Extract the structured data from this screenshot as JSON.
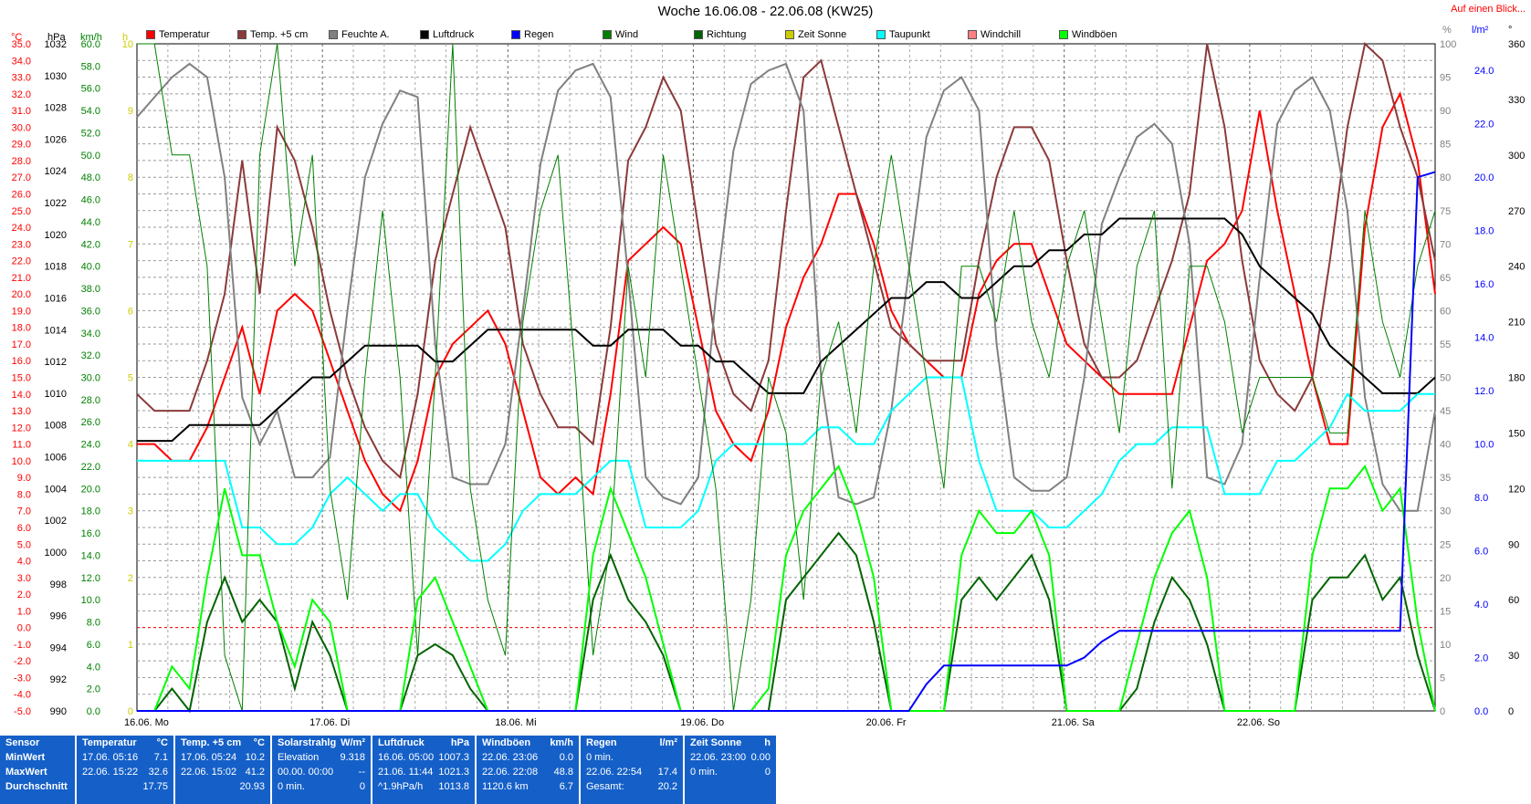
{
  "title": "Woche 16.06.08 - 22.06.08 (KW25)",
  "overview_link": "Auf einen Blick...",
  "legend": [
    {
      "label": "Temperatur",
      "color": "#ff0000"
    },
    {
      "label": "Temp. +5 cm",
      "color": "#8b3a3a"
    },
    {
      "label": "Feuchte A.",
      "color": "#808080"
    },
    {
      "label": "Luftdruck",
      "color": "#000000"
    },
    {
      "label": "Regen",
      "color": "#0000ff"
    },
    {
      "label": "Wind",
      "color": "#008000"
    },
    {
      "label": "Richtung",
      "color": "#006400"
    },
    {
      "label": "Zeit Sonne",
      "color": "#cccc00"
    },
    {
      "label": "Taupunkt",
      "color": "#00ffff"
    },
    {
      "label": "Windchill",
      "color": "#ff8080"
    },
    {
      "label": "Windböen",
      "color": "#00ff00"
    }
  ],
  "chart_data": {
    "type": "line",
    "axes": {
      "temperature": {
        "unit": "°C",
        "range": [
          -5,
          35
        ],
        "step": 1,
        "color": "#ff0000"
      },
      "pressure": {
        "unit": "hPa",
        "range": [
          990,
          1032
        ],
        "step": 2,
        "color": "#000000"
      },
      "wind": {
        "unit": "km/h",
        "range": [
          0,
          60
        ],
        "step": 2,
        "color": "#008000"
      },
      "sun": {
        "unit": "h",
        "range": [
          0,
          10
        ],
        "step": 1,
        "color": "#cccc00"
      },
      "humidity": {
        "unit": "%",
        "range": [
          0,
          100
        ],
        "step": 5,
        "color": "#808080"
      },
      "rain": {
        "unit": "l/m²",
        "range": [
          0,
          25
        ],
        "step": 2,
        "color": "#0000ff"
      },
      "direction": {
        "unit": "°",
        "range": [
          0,
          360
        ],
        "step": 30,
        "color": "#000000"
      }
    },
    "x_labels": [
      "16.06. Mo",
      "17.06. Di",
      "18.06. Mi",
      "19.06. Do",
      "20.06. Fr",
      "21.06. Sa",
      "22.06. So"
    ],
    "series": [
      {
        "name": "Temperatur",
        "axis": "temperature",
        "color": "#ff0000",
        "values": [
          11,
          11,
          10,
          10,
          12,
          15,
          18,
          14,
          19,
          20,
          19,
          16,
          13,
          10,
          8,
          7,
          10,
          15,
          17,
          18,
          19,
          17,
          13,
          9,
          8,
          9,
          8,
          14,
          22,
          23,
          24,
          23,
          18,
          13,
          11,
          10,
          13,
          18,
          21,
          23,
          26,
          26,
          23,
          19,
          17,
          16,
          15,
          15,
          20,
          22,
          23,
          23,
          20,
          17,
          16,
          15,
          14,
          14,
          14,
          14,
          18,
          22,
          23,
          25,
          31,
          25,
          20,
          15,
          11,
          11,
          24,
          30,
          32,
          28,
          20
        ]
      },
      {
        "name": "Temp. +5 cm",
        "axis": "temperature",
        "color": "#8b3a3a",
        "values": [
          14,
          13,
          13,
          13,
          16,
          20,
          28,
          20,
          30,
          28,
          24,
          19,
          15,
          12,
          10,
          9,
          14,
          22,
          26,
          30,
          27,
          24,
          17,
          14,
          12,
          12,
          11,
          18,
          28,
          30,
          33,
          31,
          24,
          17,
          14,
          13,
          16,
          25,
          33,
          34,
          30,
          26,
          22,
          18,
          17,
          16,
          16,
          16,
          22,
          27,
          30,
          30,
          28,
          22,
          17,
          15,
          15,
          16,
          19,
          22,
          26,
          36,
          30,
          22,
          16,
          14,
          13,
          15,
          22,
          30,
          36,
          34,
          30,
          27,
          22
        ]
      },
      {
        "name": "Feuchte A.",
        "axis": "humidity",
        "color": "#808080",
        "values": [
          89,
          92,
          95,
          97,
          95,
          80,
          47,
          40,
          45,
          35,
          35,
          38,
          60,
          80,
          88,
          93,
          92,
          55,
          35,
          34,
          34,
          40,
          60,
          82,
          93,
          96,
          97,
          92,
          65,
          35,
          32,
          31,
          35,
          62,
          84,
          94,
          96,
          97,
          90,
          50,
          32,
          31,
          32,
          45,
          66,
          86,
          93,
          95,
          90,
          55,
          35,
          33,
          33,
          35,
          50,
          73,
          80,
          86,
          88,
          85,
          70,
          35,
          34,
          40,
          65,
          88,
          93,
          95,
          90,
          75,
          47,
          34,
          30,
          30,
          45
        ]
      },
      {
        "name": "Luftdruck",
        "axis": "pressure",
        "color": "#000000",
        "values": [
          1007,
          1007,
          1007,
          1008,
          1008,
          1008,
          1008,
          1008,
          1009,
          1010,
          1011,
          1011,
          1012,
          1013,
          1013,
          1013,
          1013,
          1012,
          1012,
          1013,
          1014,
          1014,
          1014,
          1014,
          1014,
          1014,
          1013,
          1013,
          1014,
          1014,
          1014,
          1013,
          1013,
          1012,
          1012,
          1011,
          1010,
          1010,
          1010,
          1012,
          1013,
          1014,
          1015,
          1016,
          1016,
          1017,
          1017,
          1016,
          1016,
          1017,
          1018,
          1018,
          1019,
          1019,
          1020,
          1020,
          1021,
          1021,
          1021,
          1021,
          1021,
          1021,
          1021,
          1020,
          1018,
          1017,
          1016,
          1015,
          1013,
          1012,
          1011,
          1010,
          1010,
          1010,
          1011
        ]
      },
      {
        "name": "Taupunkt",
        "axis": "temperature",
        "color": "#00ffff",
        "values": [
          10,
          10,
          10,
          10,
          10,
          10,
          6,
          6,
          5,
          5,
          6,
          8,
          9,
          8,
          7,
          8,
          8,
          6,
          5,
          4,
          4,
          5,
          7,
          8,
          8,
          8,
          9,
          10,
          10,
          6,
          6,
          6,
          7,
          10,
          11,
          11,
          11,
          11,
          11,
          12,
          12,
          11,
          11,
          13,
          14,
          15,
          15,
          15,
          10,
          7,
          7,
          7,
          6,
          6,
          7,
          8,
          10,
          11,
          11,
          12,
          12,
          12,
          8,
          8,
          8,
          10,
          10,
          11,
          12,
          14,
          13,
          13,
          13,
          14,
          14
        ]
      },
      {
        "name": "Wind",
        "axis": "wind",
        "color": "#008000",
        "values": [
          60,
          60,
          50,
          50,
          40,
          5,
          0,
          50,
          60,
          40,
          50,
          20,
          10,
          30,
          45,
          30,
          5,
          30,
          60,
          20,
          10,
          5,
          35,
          45,
          50,
          30,
          5,
          15,
          40,
          30,
          50,
          40,
          30,
          20,
          0,
          10,
          30,
          25,
          10,
          30,
          35,
          25,
          40,
          50,
          40,
          30,
          20,
          40,
          40,
          35,
          45,
          35,
          30,
          40,
          45,
          35,
          25,
          40,
          45,
          20,
          40,
          40,
          35,
          25,
          30,
          30,
          30,
          30,
          25,
          25,
          45,
          35,
          30,
          40,
          45
        ]
      },
      {
        "name": "Richtung",
        "axis": "wind",
        "color": "#006400",
        "values": [
          0,
          0,
          2,
          0,
          8,
          12,
          8,
          10,
          8,
          2,
          8,
          5,
          0,
          0,
          0,
          0,
          5,
          6,
          5,
          2,
          0,
          0,
          0,
          0,
          0,
          0,
          10,
          14,
          10,
          8,
          5,
          0,
          0,
          0,
          0,
          0,
          0,
          10,
          12,
          14,
          16,
          14,
          8,
          0,
          0,
          0,
          0,
          10,
          12,
          10,
          12,
          14,
          10,
          0,
          0,
          0,
          0,
          2,
          8,
          12,
          10,
          6,
          0,
          0,
          0,
          0,
          0,
          10,
          12,
          12,
          14,
          10,
          12,
          5,
          0
        ]
      },
      {
        "name": "Windböen",
        "axis": "wind",
        "color": "#00ff00",
        "values": [
          0,
          0,
          4,
          2,
          12,
          20,
          14,
          14,
          8,
          4,
          10,
          8,
          0,
          0,
          0,
          0,
          10,
          12,
          8,
          4,
          0,
          0,
          0,
          0,
          0,
          0,
          14,
          20,
          16,
          12,
          6,
          0,
          0,
          0,
          0,
          0,
          2,
          14,
          18,
          20,
          22,
          18,
          12,
          0,
          0,
          0,
          0,
          14,
          18,
          16,
          16,
          18,
          14,
          0,
          0,
          0,
          0,
          6,
          12,
          16,
          18,
          12,
          0,
          0,
          0,
          0,
          0,
          14,
          20,
          20,
          22,
          18,
          20,
          8,
          0
        ]
      },
      {
        "name": "Regen",
        "axis": "rain",
        "color": "#0000ff",
        "values": [
          0,
          0,
          0,
          0,
          0,
          0,
          0,
          0,
          0,
          0,
          0,
          0,
          0,
          0,
          0,
          0,
          0,
          0,
          0,
          0,
          0,
          0,
          0,
          0,
          0,
          0,
          0,
          0,
          0,
          0,
          0,
          0,
          0,
          0,
          0,
          0,
          0,
          0,
          0,
          0,
          0,
          0,
          0,
          0,
          0,
          1,
          1.7,
          1.7,
          1.7,
          1.7,
          1.7,
          1.7,
          1.7,
          1.7,
          2.0,
          2.6,
          3.0,
          3.0,
          3.0,
          3.0,
          3.0,
          3.0,
          3.0,
          3.0,
          3.0,
          3.0,
          3.0,
          3.0,
          3.0,
          3.0,
          3.0,
          3.0,
          3.0,
          20,
          20.2
        ]
      }
    ]
  },
  "table": [
    {
      "head": [
        "Sensor",
        ""
      ],
      "rows": [
        [
          "MinWert",
          ""
        ],
        [
          "MaxWert",
          ""
        ],
        [
          "Durchschnitt",
          ""
        ]
      ]
    },
    {
      "head": [
        "Temperatur",
        "°C"
      ],
      "rows": [
        [
          "17.06.  05:16",
          "7.1"
        ],
        [
          "22.06.  15:22",
          "32.6"
        ],
        [
          "",
          "17.75"
        ]
      ]
    },
    {
      "head": [
        "Temp. +5 cm",
        "°C"
      ],
      "rows": [
        [
          "17.06.  05:24",
          "10.2"
        ],
        [
          "22.06.  15:02",
          "41.2"
        ],
        [
          "",
          "20.93"
        ]
      ]
    },
    {
      "head": [
        "Solarstrahlg",
        "W/m²"
      ],
      "rows": [
        [
          "Elevation",
          "9.318"
        ],
        [
          "00.00.  00:00",
          "--"
        ],
        [
          "0 min.",
          "0"
        ]
      ]
    },
    {
      "head": [
        "Luftdruck",
        "hPa"
      ],
      "rows": [
        [
          "16.06.  05:00",
          "1007.3"
        ],
        [
          "21.06.  11:44",
          "1021.3"
        ],
        [
          "^1.9hPa/h",
          "1013.8"
        ]
      ]
    },
    {
      "head": [
        "Windböen",
        "km/h"
      ],
      "rows": [
        [
          "22.06.  23:06",
          "0.0"
        ],
        [
          "22.06.  22:08",
          "48.8"
        ],
        [
          "1120.6 km",
          "6.7"
        ]
      ]
    },
    {
      "head": [
        "Regen",
        "l/m²"
      ],
      "rows": [
        [
          "0 min.",
          ""
        ],
        [
          "22.06.  22:54",
          "17.4"
        ],
        [
          "Gesamt:",
          "20.2"
        ]
      ]
    },
    {
      "head": [
        "Zeit Sonne",
        "h"
      ],
      "rows": [
        [
          "22.06.  23:00",
          "0.00"
        ],
        [
          "0 min.",
          "0"
        ],
        [
          "",
          ""
        ]
      ]
    }
  ]
}
